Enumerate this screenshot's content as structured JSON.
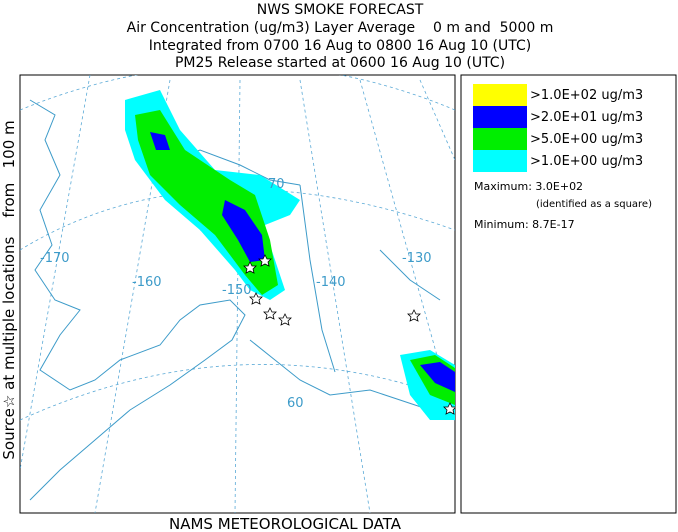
{
  "header": {
    "lines": [
      "NWS SMOKE FORECAST",
      "Air Concentration (ug/m3) Layer Average    0 m and  5000 m",
      "Integrated from 0700 16 Aug to 0800 16 Aug 10 (UTC)",
      "PM25 Release started at 0600 16 Aug 10 (UTC)"
    ]
  },
  "side_label": "Source☆ at multiple locations    from   100 m",
  "legend": {
    "items": [
      {
        "label": ">1.0E+02 ug/m3",
        "color": "#ffff00"
      },
      {
        "label": ">2.0E+01 ug/m3",
        "color": "#0000ff"
      },
      {
        "label": ">5.0E+00 ug/m3",
        "color": "#00ee00"
      },
      {
        "label": ">1.0E+00 ug/m3",
        "color": "#00ffff"
      }
    ],
    "maximum": "Maximum: 3.0E+02",
    "maximum_note": "(identified as a square)",
    "minimum": "Minimum: 8.7E-17"
  },
  "map": {
    "labels": [
      "-170",
      "-160",
      "-150",
      "-140",
      "-130",
      "70",
      "60"
    ]
  },
  "footer": "NAMS METEOROLOGICAL DATA"
}
